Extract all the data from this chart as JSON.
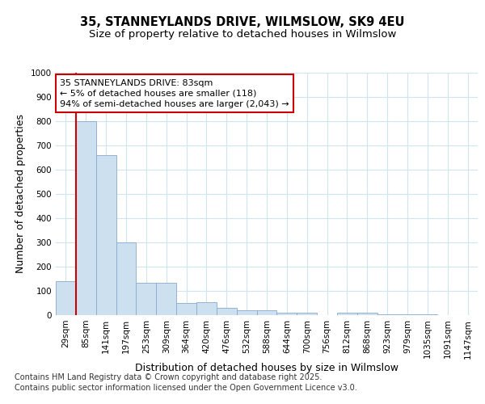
{
  "title_line1": "35, STANNEYLANDS DRIVE, WILMSLOW, SK9 4EU",
  "title_line2": "Size of property relative to detached houses in Wilmslow",
  "xlabel": "Distribution of detached houses by size in Wilmslow",
  "ylabel": "Number of detached properties",
  "categories": [
    "29sqm",
    "85sqm",
    "141sqm",
    "197sqm",
    "253sqm",
    "309sqm",
    "364sqm",
    "420sqm",
    "476sqm",
    "532sqm",
    "588sqm",
    "644sqm",
    "700sqm",
    "756sqm",
    "812sqm",
    "868sqm",
    "923sqm",
    "979sqm",
    "1035sqm",
    "1091sqm",
    "1147sqm"
  ],
  "values": [
    140,
    800,
    660,
    300,
    135,
    135,
    50,
    55,
    30,
    20,
    20,
    10,
    10,
    0,
    10,
    10,
    3,
    3,
    2,
    1,
    1
  ],
  "bar_color": "#cce0f0",
  "bar_edge_color": "#88aacc",
  "grid_color": "#d0e4f0",
  "background_color": "#ffffff",
  "annotation_line1": "35 STANNEYLANDS DRIVE: 83sqm",
  "annotation_line2": "← 5% of detached houses are smaller (118)",
  "annotation_line3": "94% of semi-detached houses are larger (2,043) →",
  "annotation_box_edge": "#cc0000",
  "vline_color": "#cc0000",
  "vline_x": 0.5,
  "ylim": [
    0,
    1000
  ],
  "yticks": [
    0,
    100,
    200,
    300,
    400,
    500,
    600,
    700,
    800,
    900,
    1000
  ],
  "footer_line1": "Contains HM Land Registry data © Crown copyright and database right 2025.",
  "footer_line2": "Contains public sector information licensed under the Open Government Licence v3.0.",
  "title_fontsize": 10.5,
  "subtitle_fontsize": 9.5,
  "axis_label_fontsize": 9,
  "tick_fontsize": 7.5,
  "annotation_fontsize": 8,
  "footer_fontsize": 7
}
